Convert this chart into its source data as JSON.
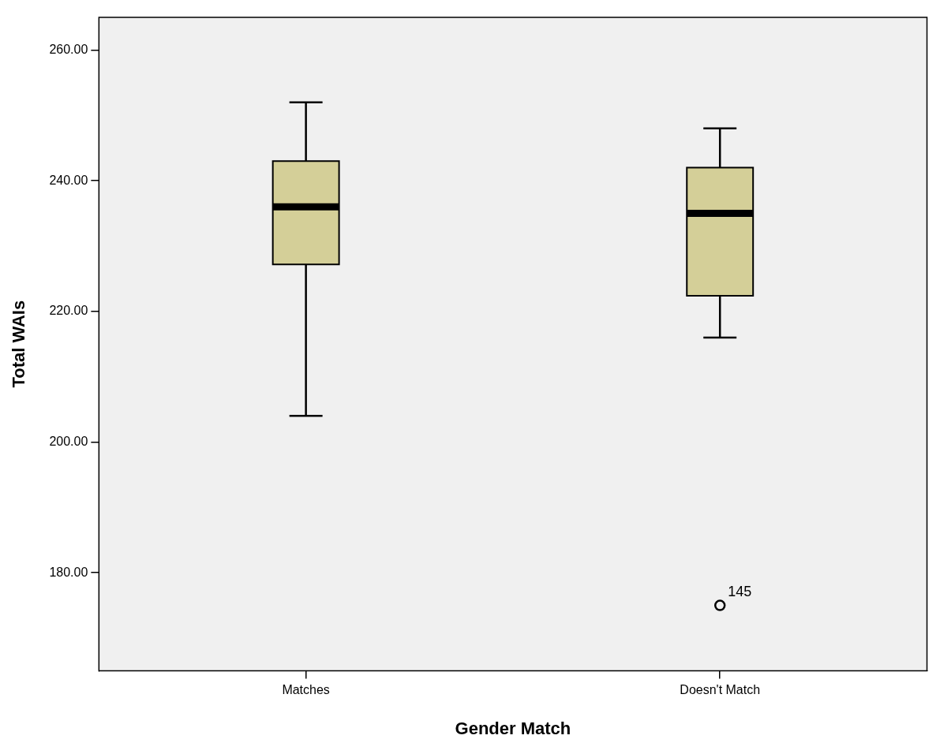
{
  "chart_data": {
    "type": "box",
    "xlabel": "Gender Match",
    "ylabel": "Total WAIs",
    "categories": [
      "Matches",
      "Doesn't Match"
    ],
    "color": "#d4cf98",
    "boxes": [
      {
        "low": 204,
        "q1": 227.2,
        "median": 236,
        "q3": 243,
        "high": 252
      },
      {
        "low": 216,
        "q1": 222.4,
        "median": 235,
        "q3": 242,
        "high": 248,
        "outliers": [
          175
        ]
      }
    ],
    "ylim": [
      165,
      265
    ],
    "yticks": [
      {
        "value": 180,
        "label": "180.00"
      },
      {
        "value": 200,
        "label": "200.00"
      },
      {
        "value": 220,
        "label": "220.00"
      },
      {
        "value": 240,
        "label": "240.00"
      },
      {
        "value": 260,
        "label": "260.00"
      }
    ],
    "grid": false,
    "legend": false,
    "annotations": [
      "145"
    ]
  }
}
